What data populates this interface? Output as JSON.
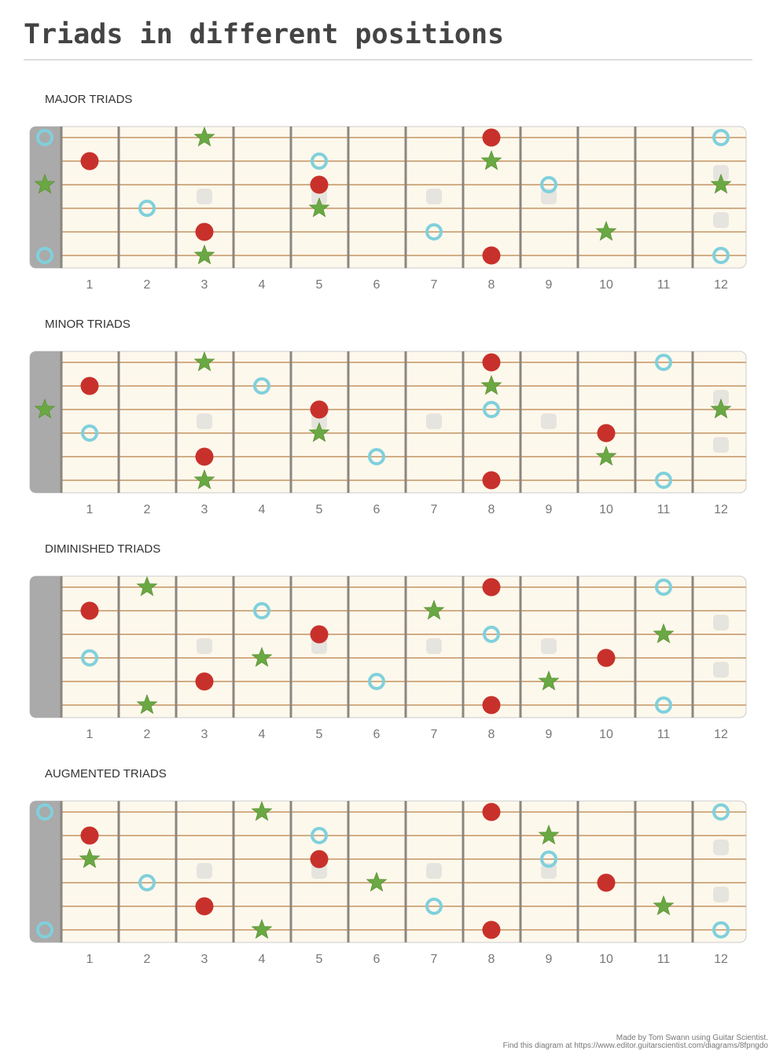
{
  "title": "Triads in different positions",
  "fret_numbers": [
    "1",
    "2",
    "3",
    "4",
    "5",
    "6",
    "7",
    "8",
    "9",
    "10",
    "11",
    "12"
  ],
  "inlay_frets": [
    3,
    5,
    7,
    9,
    12
  ],
  "colors": {
    "root": "#c8312b",
    "third": "#6aa843",
    "fifth": "#80d0dc",
    "board": "#fdf8ec",
    "nut": "#aaaaaa",
    "fret": "#8c8680",
    "string": "#d2ad85",
    "inlay": "#e6e4df"
  },
  "legend_types": {
    "red-circle": "root",
    "green-star": "third",
    "blue-ring": "fifth"
  },
  "diagrams": [
    {
      "label": "MAJOR TRIADS",
      "markers": [
        [
          1,
          0,
          "ring"
        ],
        [
          1,
          3,
          "star"
        ],
        [
          1,
          8,
          "dot"
        ],
        [
          1,
          12,
          "ring"
        ],
        [
          2,
          1,
          "dot"
        ],
        [
          2,
          5,
          "ring"
        ],
        [
          2,
          8,
          "star"
        ],
        [
          3,
          0,
          "star"
        ],
        [
          3,
          5,
          "dot"
        ],
        [
          3,
          9,
          "ring"
        ],
        [
          3,
          12,
          "star"
        ],
        [
          4,
          2,
          "ring"
        ],
        [
          4,
          5,
          "star"
        ],
        [
          5,
          3,
          "dot"
        ],
        [
          5,
          7,
          "ring"
        ],
        [
          5,
          10,
          "star"
        ],
        [
          6,
          0,
          "ring"
        ],
        [
          6,
          3,
          "star"
        ],
        [
          6,
          8,
          "dot"
        ],
        [
          6,
          12,
          "ring"
        ]
      ]
    },
    {
      "label": "MINOR TRIADS",
      "markers": [
        [
          1,
          3,
          "star"
        ],
        [
          1,
          8,
          "dot"
        ],
        [
          1,
          11,
          "ring"
        ],
        [
          2,
          1,
          "dot"
        ],
        [
          2,
          4,
          "ring"
        ],
        [
          2,
          8,
          "star"
        ],
        [
          3,
          0,
          "star"
        ],
        [
          3,
          5,
          "dot"
        ],
        [
          3,
          8,
          "ring"
        ],
        [
          3,
          12,
          "star"
        ],
        [
          4,
          1,
          "ring"
        ],
        [
          4,
          5,
          "star"
        ],
        [
          4,
          10,
          "dot"
        ],
        [
          5,
          3,
          "dot"
        ],
        [
          5,
          6,
          "ring"
        ],
        [
          5,
          10,
          "star"
        ],
        [
          6,
          3,
          "star"
        ],
        [
          6,
          8,
          "dot"
        ],
        [
          6,
          11,
          "ring"
        ]
      ]
    },
    {
      "label": "DIMINISHED TRIADS",
      "markers": [
        [
          1,
          2,
          "star"
        ],
        [
          1,
          8,
          "dot"
        ],
        [
          1,
          11,
          "ring"
        ],
        [
          2,
          1,
          "dot"
        ],
        [
          2,
          4,
          "ring"
        ],
        [
          2,
          7,
          "star"
        ],
        [
          3,
          5,
          "dot"
        ],
        [
          3,
          8,
          "ring"
        ],
        [
          3,
          11,
          "star"
        ],
        [
          4,
          1,
          "ring"
        ],
        [
          4,
          4,
          "star"
        ],
        [
          4,
          10,
          "dot"
        ],
        [
          5,
          3,
          "dot"
        ],
        [
          5,
          6,
          "ring"
        ],
        [
          5,
          9,
          "star"
        ],
        [
          6,
          2,
          "star"
        ],
        [
          6,
          8,
          "dot"
        ],
        [
          6,
          11,
          "ring"
        ]
      ]
    },
    {
      "label": "AUGMENTED TRIADS",
      "markers": [
        [
          1,
          0,
          "ring"
        ],
        [
          1,
          4,
          "star"
        ],
        [
          1,
          8,
          "dot"
        ],
        [
          1,
          12,
          "ring"
        ],
        [
          2,
          1,
          "dot"
        ],
        [
          2,
          5,
          "ring"
        ],
        [
          2,
          9,
          "star"
        ],
        [
          3,
          1,
          "star"
        ],
        [
          3,
          5,
          "dot"
        ],
        [
          3,
          9,
          "ring"
        ],
        [
          4,
          2,
          "ring"
        ],
        [
          4,
          6,
          "star"
        ],
        [
          4,
          10,
          "dot"
        ],
        [
          5,
          3,
          "dot"
        ],
        [
          5,
          7,
          "ring"
        ],
        [
          5,
          11,
          "star"
        ],
        [
          6,
          0,
          "ring"
        ],
        [
          6,
          4,
          "star"
        ],
        [
          6,
          8,
          "dot"
        ],
        [
          6,
          12,
          "ring"
        ]
      ]
    }
  ],
  "footer": {
    "line1": "Made by Tom Swann using Guitar Scientist.",
    "line2": "Find this diagram at https://www.editor.guitarscientist.com/diagrams/8fpngdo"
  }
}
